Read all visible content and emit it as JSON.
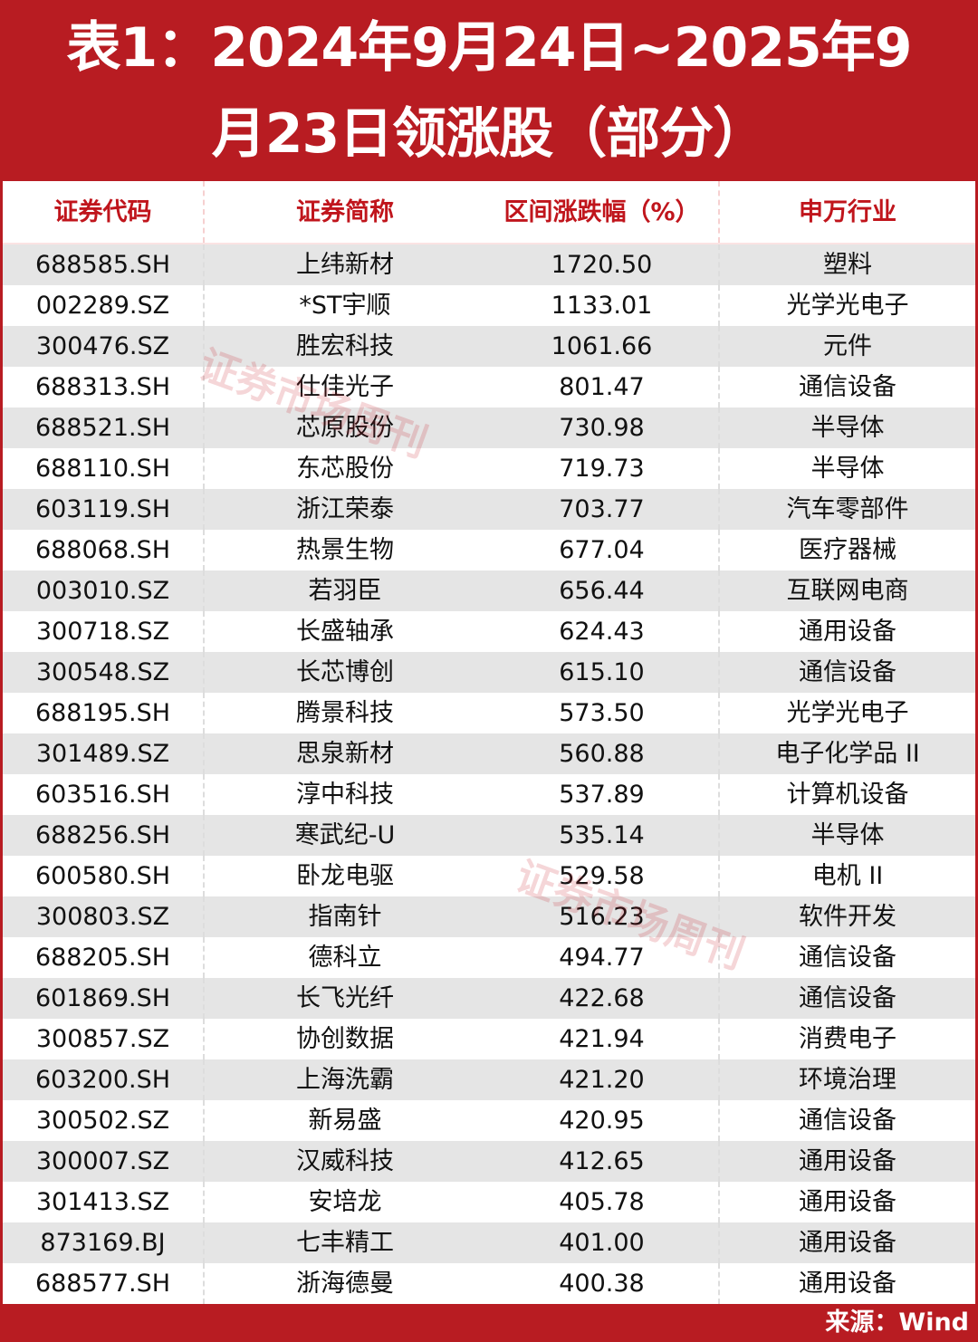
{
  "title": {
    "line1": "表1：2024年9月24日~2025年9",
    "line2": "月23日领涨股（部分）"
  },
  "headers": [
    "证券代码",
    "证券简称",
    "区间涨跌幅（%）",
    "申万行业"
  ],
  "rows": [
    [
      "688585.SH",
      "上纬新材",
      "1720.50",
      "塑料"
    ],
    [
      "002289.SZ",
      "*ST宇顺",
      "1133.01",
      "光学光电子"
    ],
    [
      "300476.SZ",
      "胜宏科技",
      "1061.66",
      "元件"
    ],
    [
      "688313.SH",
      "仕佳光子",
      "801.47",
      "通信设备"
    ],
    [
      "688521.SH",
      "芯原股份",
      "730.98",
      "半导体"
    ],
    [
      "688110.SH",
      "东芯股份",
      "719.73",
      "半导体"
    ],
    [
      "603119.SH",
      "浙江荣泰",
      "703.77",
      "汽车零部件"
    ],
    [
      "688068.SH",
      "热景生物",
      "677.04",
      "医疗器械"
    ],
    [
      "003010.SZ",
      "若羽臣",
      "656.44",
      "互联网电商"
    ],
    [
      "300718.SZ",
      "长盛轴承",
      "624.43",
      "通用设备"
    ],
    [
      "300548.SZ",
      "长芯博创",
      "615.10",
      "通信设备"
    ],
    [
      "688195.SH",
      "腾景科技",
      "573.50",
      "光学光电子"
    ],
    [
      "301489.SZ",
      "思泉新材",
      "560.88",
      "电子化学品 II"
    ],
    [
      "603516.SH",
      "淳中科技",
      "537.89",
      "计算机设备"
    ],
    [
      "688256.SH",
      "寒武纪-U",
      "535.14",
      "半导体"
    ],
    [
      "600580.SH",
      "卧龙电驱",
      "529.58",
      "电机 II"
    ],
    [
      "300803.SZ",
      "指南针",
      "516.23",
      "软件开发"
    ],
    [
      "688205.SH",
      "德科立",
      "494.77",
      "通信设备"
    ],
    [
      "601869.SH",
      "长飞光纤",
      "422.68",
      "通信设备"
    ],
    [
      "300857.SZ",
      "协创数据",
      "421.94",
      "消费电子"
    ],
    [
      "603200.SH",
      "上海洗霸",
      "421.20",
      "环境治理"
    ],
    [
      "300502.SZ",
      "新易盛",
      "420.95",
      "通信设备"
    ],
    [
      "300007.SZ",
      "汉威科技",
      "412.65",
      "通用设备"
    ],
    [
      "301413.SZ",
      "安培龙",
      "405.78",
      "通用设备"
    ],
    [
      "873169.BJ",
      "七丰精工",
      "401.00",
      "通用设备"
    ],
    [
      "688577.SH",
      "浙海德曼",
      "400.38",
      "通用设备"
    ]
  ],
  "footer": "来源：Wind",
  "watermark": "证券市场周刊",
  "colors": {
    "brand": "#b81c22",
    "header_text": "#c0151c",
    "row_shade": "#e5e5e5"
  }
}
